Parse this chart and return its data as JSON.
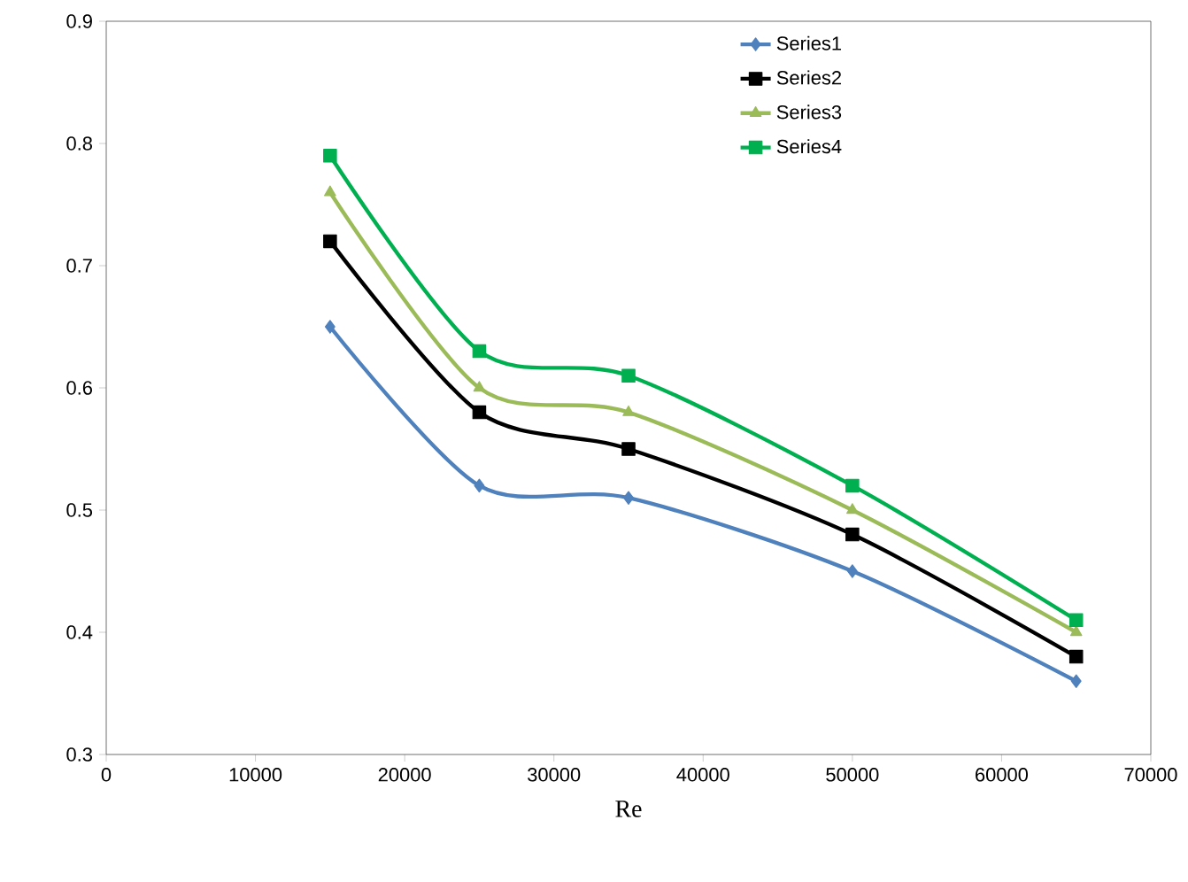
{
  "chart_data": {
    "type": "line",
    "xlabel": "Re",
    "x": [
      15000,
      25000,
      35000,
      50000,
      65000
    ],
    "series": [
      {
        "name": "Series1",
        "color": "#4f81bd",
        "marker": "diamond",
        "values": [
          0.65,
          0.52,
          0.51,
          0.45,
          0.36
        ]
      },
      {
        "name": "Series2",
        "color": "#000000",
        "marker": "square",
        "values": [
          0.72,
          0.58,
          0.55,
          0.48,
          0.38
        ]
      },
      {
        "name": "Series3",
        "color": "#9bbb59",
        "marker": "triangle",
        "values": [
          0.76,
          0.6,
          0.58,
          0.5,
          0.4
        ]
      },
      {
        "name": "Series4",
        "color": "#00b050",
        "marker": "square",
        "values": [
          0.79,
          0.63,
          0.61,
          0.52,
          0.41
        ]
      }
    ],
    "xlim": [
      0,
      70000
    ],
    "xticks": [
      0,
      10000,
      20000,
      30000,
      40000,
      50000,
      60000,
      70000
    ],
    "ylim": [
      0.3,
      0.9
    ],
    "yticks": [
      0.3,
      0.4,
      0.5,
      0.6,
      0.7,
      0.8,
      0.9
    ],
    "grid": false,
    "legend": "top right",
    "line_style": "solid"
  }
}
